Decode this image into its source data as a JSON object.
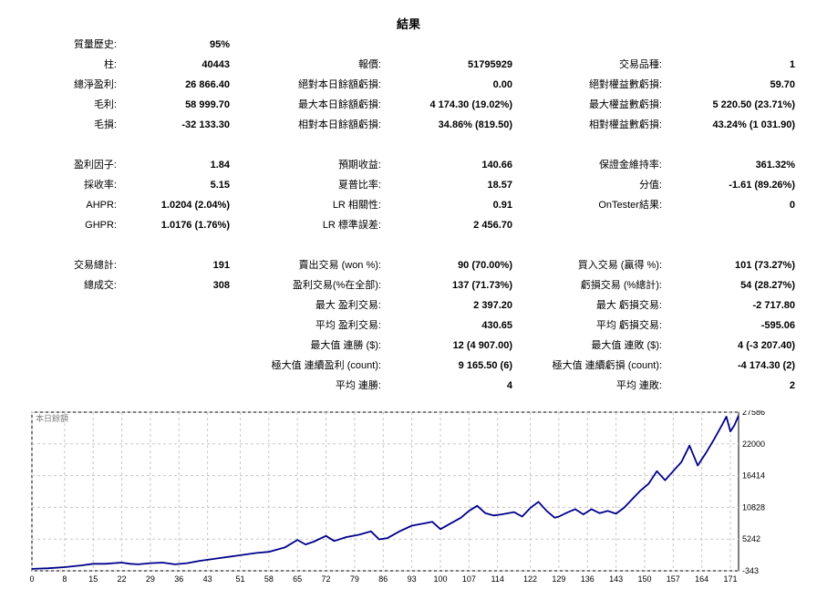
{
  "title": "結果",
  "rows": [
    [
      {
        "label": "質量歷史:",
        "value": "95%"
      },
      null,
      null
    ],
    [
      {
        "label": "柱:",
        "value": "40443"
      },
      {
        "label": "報價:",
        "value": "51795929"
      },
      {
        "label": "交易品種:",
        "value": "1"
      }
    ],
    [
      {
        "label": "總淨盈利:",
        "value": "26 866.40"
      },
      {
        "label": "絕對本日餘額虧損:",
        "value": "0.00"
      },
      {
        "label": "絕對權益數虧損:",
        "value": "59.70"
      }
    ],
    [
      {
        "label": "毛利:",
        "value": "58 999.70"
      },
      {
        "label": "最大本日餘額虧損:",
        "value": "4 174.30 (19.02%)"
      },
      {
        "label": "最大權益數虧損:",
        "value": "5 220.50 (23.71%)"
      }
    ],
    [
      {
        "label": "毛損:",
        "value": "-32 133.30"
      },
      {
        "label": "相對本日餘額虧損:",
        "value": "34.86% (819.50)"
      },
      {
        "label": "相對權益數虧損:",
        "value": "43.24% (1 031.90)"
      }
    ],
    null,
    [
      {
        "label": "盈利因子:",
        "value": "1.84"
      },
      {
        "label": "預期收益:",
        "value": "140.66"
      },
      {
        "label": "保證金維持率:",
        "value": "361.32%"
      }
    ],
    [
      {
        "label": "採收率:",
        "value": "5.15"
      },
      {
        "label": "夏普比率:",
        "value": "18.57"
      },
      {
        "label": "分值:",
        "value": "-1.61 (89.26%)"
      }
    ],
    [
      {
        "label": "AHPR:",
        "value": "1.0204 (2.04%)"
      },
      {
        "label": "LR 相關性:",
        "value": "0.91"
      },
      {
        "label": "OnTester結果:",
        "value": "0"
      }
    ],
    [
      {
        "label": "GHPR:",
        "value": "1.0176 (1.76%)"
      },
      {
        "label": "LR 標準誤差:",
        "value": "2 456.70"
      },
      null
    ],
    null,
    [
      {
        "label": "交易總計:",
        "value": "191"
      },
      {
        "label": "賣出交易 (won %):",
        "value": "90 (70.00%)"
      },
      {
        "label": "買入交易 (贏得 %):",
        "value": "101 (73.27%)"
      }
    ],
    [
      {
        "label": "總成交:",
        "value": "308"
      },
      {
        "label": "盈利交易(%在全部):",
        "value": "137 (71.73%)"
      },
      {
        "label": "虧損交易 (%總計):",
        "value": "54 (28.27%)"
      }
    ],
    [
      null,
      {
        "label": "最大 盈利交易:",
        "value": "2 397.20"
      },
      {
        "label": "最大 虧損交易:",
        "value": "-2 717.80"
      }
    ],
    [
      null,
      {
        "label": "平均 盈利交易:",
        "value": "430.65"
      },
      {
        "label": "平均 虧損交易:",
        "value": "-595.06"
      }
    ],
    [
      null,
      {
        "label": "最大值 連勝 ($):",
        "value": "12 (4 907.00)"
      },
      {
        "label": "最大值 連敗 ($):",
        "value": "4 (-3 207.40)"
      }
    ],
    [
      null,
      {
        "label": "極大值 連續盈利 (count):",
        "value": "9 165.50 (6)"
      },
      {
        "label": "極大值 連續虧損 (count):",
        "value": "-4 174.30 (2)"
      }
    ],
    [
      null,
      {
        "label": "平均 連勝:",
        "value": "4"
      },
      {
        "label": "平均 連敗:",
        "value": "2"
      }
    ]
  ],
  "chart_data": {
    "type": "line",
    "title": "本日餘額",
    "xlabel": "",
    "ylabel": "",
    "xlim": [
      0,
      173
    ],
    "ylim": [
      -343,
      27586
    ],
    "x_ticks": [
      0,
      8,
      15,
      22,
      29,
      36,
      43,
      51,
      58,
      65,
      72,
      79,
      86,
      93,
      100,
      107,
      114,
      122,
      129,
      136,
      143,
      150,
      157,
      164,
      171
    ],
    "y_ticks": [
      -343,
      5242,
      10828,
      16414,
      22000,
      27586
    ],
    "grid": true,
    "line_color": "#00008b",
    "series": [
      {
        "x": [
          0,
          4,
          8,
          12,
          15,
          18,
          20,
          22,
          24,
          26,
          29,
          32,
          35,
          38,
          41,
          45,
          50,
          55,
          58,
          62,
          65,
          67,
          69,
          72,
          74,
          77,
          80,
          83,
          85,
          87,
          90,
          93,
          96,
          98,
          100,
          102,
          105,
          107,
          109,
          111,
          113,
          115,
          118,
          120,
          122,
          124,
          126,
          128,
          129,
          131,
          133,
          135,
          137,
          139,
          141,
          143,
          145,
          147,
          149,
          151,
          153,
          155,
          157,
          159,
          161,
          163,
          165,
          167,
          169,
          170,
          171,
          172,
          173
        ],
        "values": [
          0,
          100,
          300,
          600,
          900,
          900,
          1000,
          1100,
          900,
          800,
          1000,
          1100,
          800,
          1000,
          1400,
          1800,
          2300,
          2800,
          3000,
          3800,
          5100,
          4300,
          4800,
          5800,
          4900,
          5600,
          6000,
          6600,
          5200,
          5400,
          6600,
          7600,
          8000,
          8300,
          7000,
          7800,
          9000,
          10200,
          11100,
          9800,
          9400,
          9600,
          10000,
          9200,
          10700,
          11800,
          10200,
          9000,
          9200,
          9900,
          10500,
          9600,
          10500,
          9800,
          10200,
          9700,
          10800,
          12300,
          13800,
          15000,
          17200,
          15600,
          17200,
          18800,
          21700,
          18200,
          20400,
          22800,
          25400,
          26800,
          24200,
          25300,
          27000
        ]
      }
    ]
  }
}
